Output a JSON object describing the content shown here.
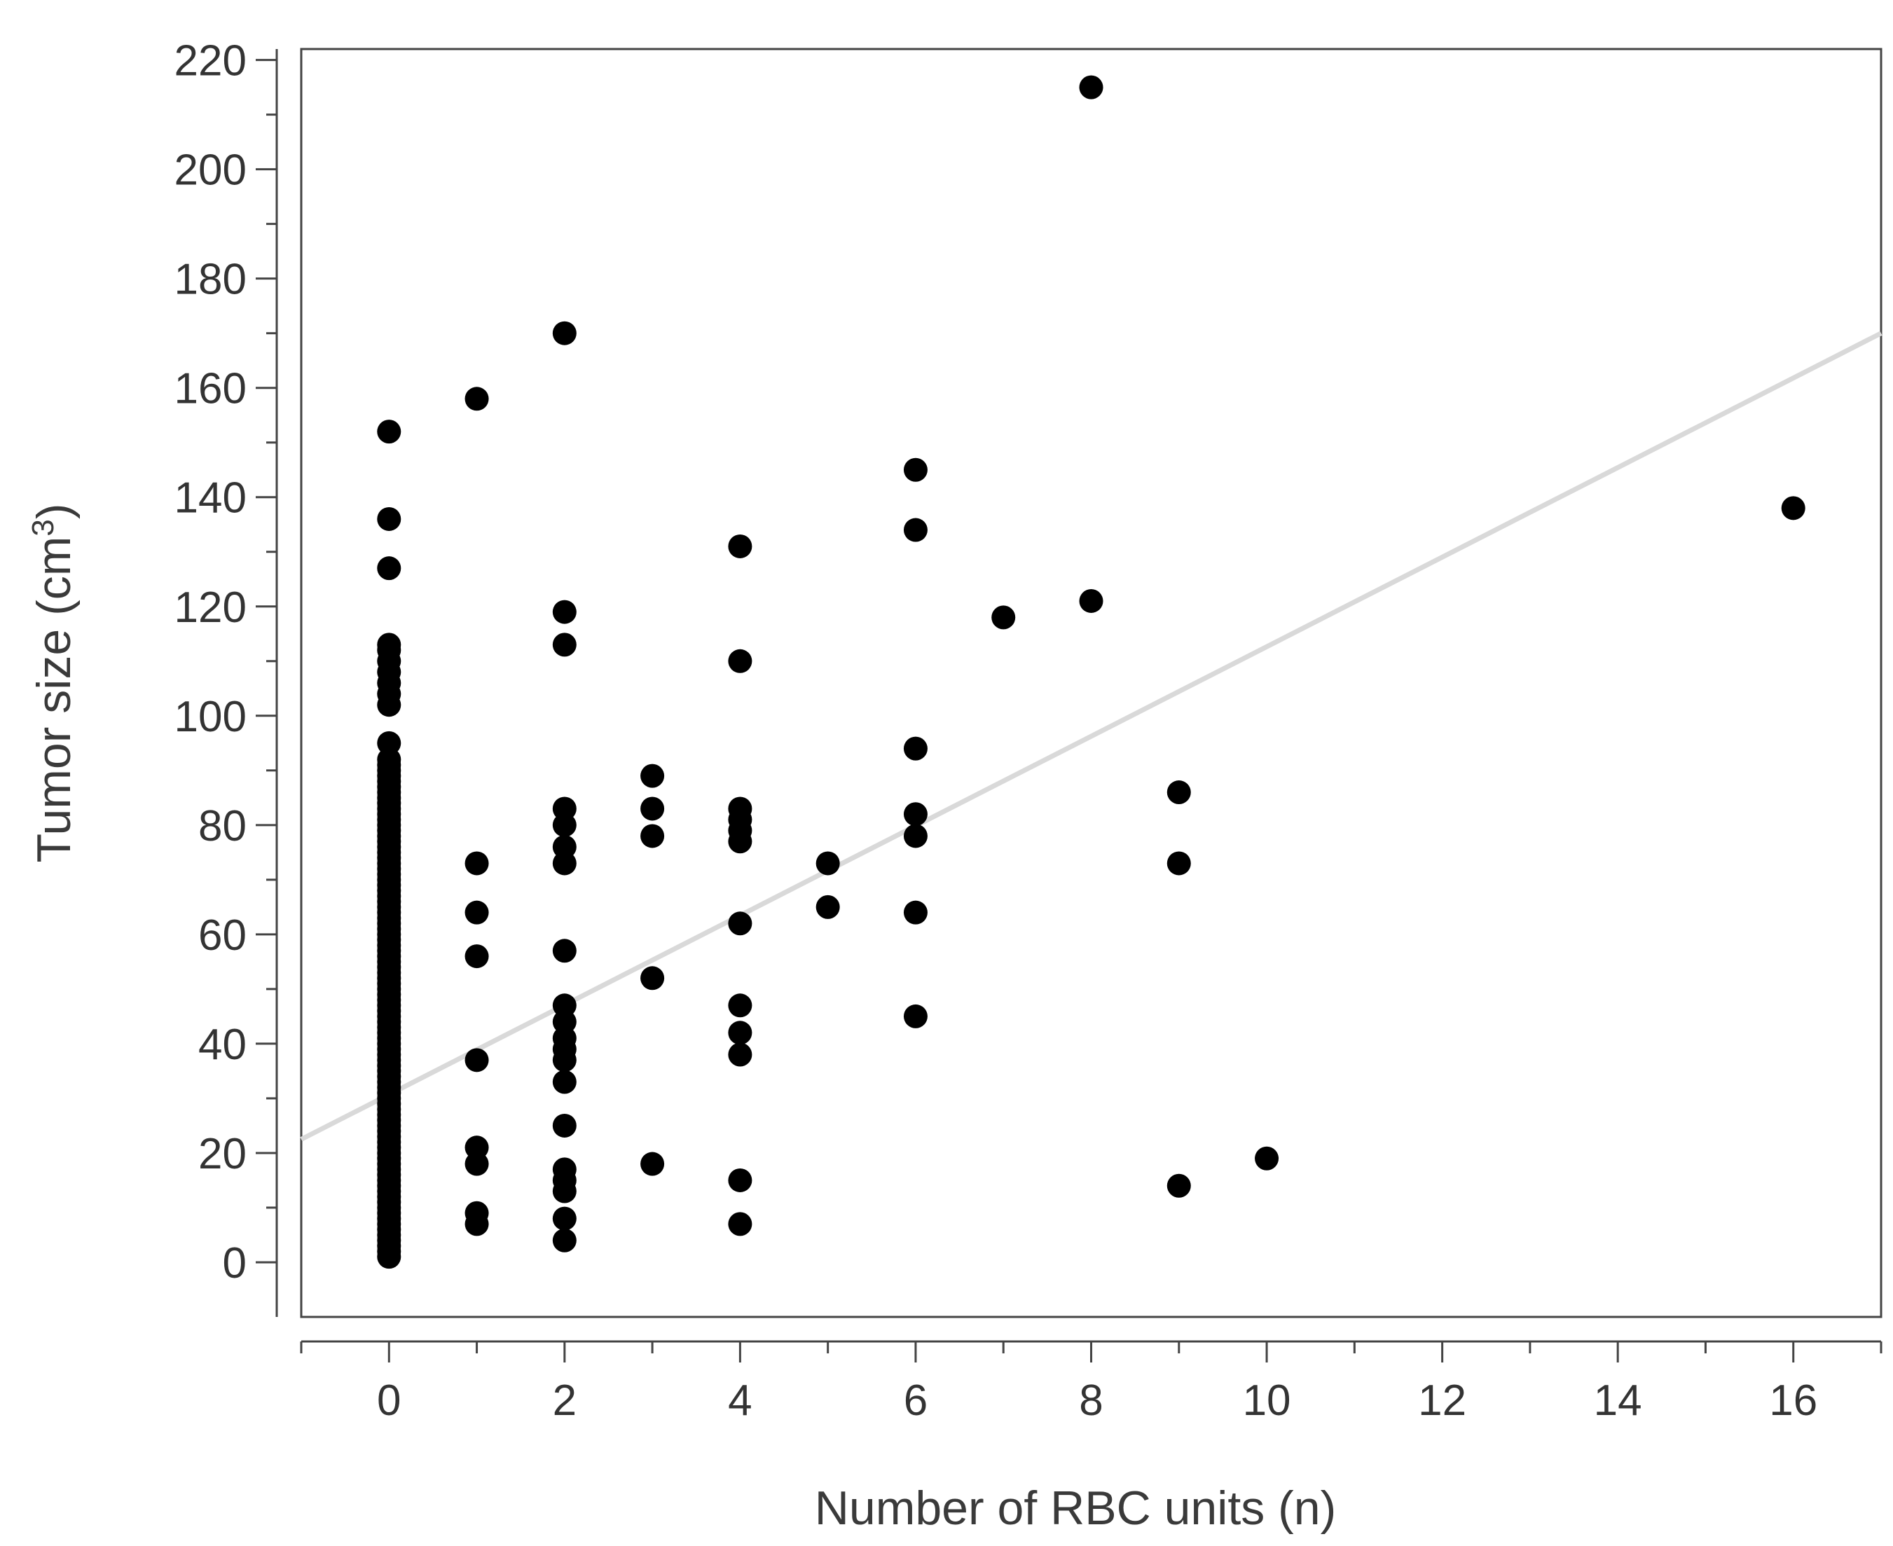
{
  "chart_data": {
    "type": "scatter",
    "title": "",
    "xlabel": "Number of RBC units (n)",
    "ylabel_prefix": "Tumor size (cm",
    "ylabel_sup": "3",
    "ylabel_suffix": ")",
    "xlim": [
      -1,
      17
    ],
    "ylim": [
      -10,
      222
    ],
    "x_ticks": [
      0,
      2,
      4,
      6,
      8,
      10,
      12,
      14,
      16
    ],
    "x_tick_labels": [
      "0",
      "2",
      "4",
      "6",
      "8",
      "10",
      "12",
      "14",
      "16"
    ],
    "y_ticks": [
      0,
      20,
      40,
      60,
      80,
      100,
      120,
      140,
      160,
      180,
      200,
      220
    ],
    "y_tick_labels": [
      "0",
      "20",
      "40",
      "60",
      "80",
      "100",
      "120",
      "140",
      "160",
      "180",
      "200",
      "220"
    ],
    "grid": false,
    "legend": "none",
    "colors": {
      "points": "#000000",
      "trend_line": "#d9d9d9",
      "axes": "#444444"
    },
    "points": [
      {
        "x": 0,
        "y": 1
      },
      {
        "x": 0,
        "y": 2
      },
      {
        "x": 0,
        "y": 3
      },
      {
        "x": 0,
        "y": 4
      },
      {
        "x": 0,
        "y": 5
      },
      {
        "x": 0,
        "y": 6
      },
      {
        "x": 0,
        "y": 7
      },
      {
        "x": 0,
        "y": 8
      },
      {
        "x": 0,
        "y": 9
      },
      {
        "x": 0,
        "y": 10
      },
      {
        "x": 0,
        "y": 11
      },
      {
        "x": 0,
        "y": 12
      },
      {
        "x": 0,
        "y": 13
      },
      {
        "x": 0,
        "y": 14
      },
      {
        "x": 0,
        "y": 15
      },
      {
        "x": 0,
        "y": 16
      },
      {
        "x": 0,
        "y": 17
      },
      {
        "x": 0,
        "y": 18
      },
      {
        "x": 0,
        "y": 19
      },
      {
        "x": 0,
        "y": 20
      },
      {
        "x": 0,
        "y": 21
      },
      {
        "x": 0,
        "y": 22
      },
      {
        "x": 0,
        "y": 23
      },
      {
        "x": 0,
        "y": 24
      },
      {
        "x": 0,
        "y": 25
      },
      {
        "x": 0,
        "y": 26
      },
      {
        "x": 0,
        "y": 27
      },
      {
        "x": 0,
        "y": 28
      },
      {
        "x": 0,
        "y": 29
      },
      {
        "x": 0,
        "y": 30
      },
      {
        "x": 0,
        "y": 31
      },
      {
        "x": 0,
        "y": 32
      },
      {
        "x": 0,
        "y": 33
      },
      {
        "x": 0,
        "y": 34
      },
      {
        "x": 0,
        "y": 35
      },
      {
        "x": 0,
        "y": 36
      },
      {
        "x": 0,
        "y": 37
      },
      {
        "x": 0,
        "y": 38
      },
      {
        "x": 0,
        "y": 39
      },
      {
        "x": 0,
        "y": 40
      },
      {
        "x": 0,
        "y": 41
      },
      {
        "x": 0,
        "y": 42
      },
      {
        "x": 0,
        "y": 43
      },
      {
        "x": 0,
        "y": 44
      },
      {
        "x": 0,
        "y": 45
      },
      {
        "x": 0,
        "y": 46
      },
      {
        "x": 0,
        "y": 47
      },
      {
        "x": 0,
        "y": 48
      },
      {
        "x": 0,
        "y": 49
      },
      {
        "x": 0,
        "y": 50
      },
      {
        "x": 0,
        "y": 51
      },
      {
        "x": 0,
        "y": 52
      },
      {
        "x": 0,
        "y": 53
      },
      {
        "x": 0,
        "y": 54
      },
      {
        "x": 0,
        "y": 55
      },
      {
        "x": 0,
        "y": 56
      },
      {
        "x": 0,
        "y": 57
      },
      {
        "x": 0,
        "y": 58
      },
      {
        "x": 0,
        "y": 59
      },
      {
        "x": 0,
        "y": 60
      },
      {
        "x": 0,
        "y": 61
      },
      {
        "x": 0,
        "y": 62
      },
      {
        "x": 0,
        "y": 63
      },
      {
        "x": 0,
        "y": 64
      },
      {
        "x": 0,
        "y": 65
      },
      {
        "x": 0,
        "y": 66
      },
      {
        "x": 0,
        "y": 67
      },
      {
        "x": 0,
        "y": 68
      },
      {
        "x": 0,
        "y": 69
      },
      {
        "x": 0,
        "y": 70
      },
      {
        "x": 0,
        "y": 71
      },
      {
        "x": 0,
        "y": 72
      },
      {
        "x": 0,
        "y": 73
      },
      {
        "x": 0,
        "y": 74
      },
      {
        "x": 0,
        "y": 75
      },
      {
        "x": 0,
        "y": 76
      },
      {
        "x": 0,
        "y": 77
      },
      {
        "x": 0,
        "y": 78
      },
      {
        "x": 0,
        "y": 79
      },
      {
        "x": 0,
        "y": 80
      },
      {
        "x": 0,
        "y": 81
      },
      {
        "x": 0,
        "y": 82
      },
      {
        "x": 0,
        "y": 83
      },
      {
        "x": 0,
        "y": 84
      },
      {
        "x": 0,
        "y": 85
      },
      {
        "x": 0,
        "y": 86
      },
      {
        "x": 0,
        "y": 87
      },
      {
        "x": 0,
        "y": 88
      },
      {
        "x": 0,
        "y": 89
      },
      {
        "x": 0,
        "y": 90
      },
      {
        "x": 0,
        "y": 91
      },
      {
        "x": 0,
        "y": 92
      },
      {
        "x": 0,
        "y": 95
      },
      {
        "x": 0,
        "y": 102
      },
      {
        "x": 0,
        "y": 104
      },
      {
        "x": 0,
        "y": 106
      },
      {
        "x": 0,
        "y": 108
      },
      {
        "x": 0,
        "y": 110
      },
      {
        "x": 0,
        "y": 112
      },
      {
        "x": 0,
        "y": 113
      },
      {
        "x": 0,
        "y": 127
      },
      {
        "x": 0,
        "y": 136
      },
      {
        "x": 0,
        "y": 152
      },
      {
        "x": 1,
        "y": 7
      },
      {
        "x": 1,
        "y": 9
      },
      {
        "x": 1,
        "y": 18
      },
      {
        "x": 1,
        "y": 21
      },
      {
        "x": 1,
        "y": 37
      },
      {
        "x": 1,
        "y": 56
      },
      {
        "x": 1,
        "y": 64
      },
      {
        "x": 1,
        "y": 73
      },
      {
        "x": 1,
        "y": 158
      },
      {
        "x": 2,
        "y": 4
      },
      {
        "x": 2,
        "y": 8
      },
      {
        "x": 2,
        "y": 13
      },
      {
        "x": 2,
        "y": 15
      },
      {
        "x": 2,
        "y": 17
      },
      {
        "x": 2,
        "y": 25
      },
      {
        "x": 2,
        "y": 33
      },
      {
        "x": 2,
        "y": 37
      },
      {
        "x": 2,
        "y": 39
      },
      {
        "x": 2,
        "y": 41
      },
      {
        "x": 2,
        "y": 44
      },
      {
        "x": 2,
        "y": 47
      },
      {
        "x": 2,
        "y": 57
      },
      {
        "x": 2,
        "y": 73
      },
      {
        "x": 2,
        "y": 76
      },
      {
        "x": 2,
        "y": 80
      },
      {
        "x": 2,
        "y": 83
      },
      {
        "x": 2,
        "y": 113
      },
      {
        "x": 2,
        "y": 119
      },
      {
        "x": 2,
        "y": 170
      },
      {
        "x": 3,
        "y": 18
      },
      {
        "x": 3,
        "y": 52
      },
      {
        "x": 3,
        "y": 78
      },
      {
        "x": 3,
        "y": 83
      },
      {
        "x": 3,
        "y": 89
      },
      {
        "x": 4,
        "y": 7
      },
      {
        "x": 4,
        "y": 15
      },
      {
        "x": 4,
        "y": 38
      },
      {
        "x": 4,
        "y": 42
      },
      {
        "x": 4,
        "y": 47
      },
      {
        "x": 4,
        "y": 62
      },
      {
        "x": 4,
        "y": 77
      },
      {
        "x": 4,
        "y": 79
      },
      {
        "x": 4,
        "y": 81
      },
      {
        "x": 4,
        "y": 83
      },
      {
        "x": 4,
        "y": 110
      },
      {
        "x": 4,
        "y": 131
      },
      {
        "x": 5,
        "y": 65
      },
      {
        "x": 5,
        "y": 73
      },
      {
        "x": 6,
        "y": 45
      },
      {
        "x": 6,
        "y": 64
      },
      {
        "x": 6,
        "y": 78
      },
      {
        "x": 6,
        "y": 82
      },
      {
        "x": 6,
        "y": 94
      },
      {
        "x": 6,
        "y": 134
      },
      {
        "x": 6,
        "y": 145
      },
      {
        "x": 7,
        "y": 118
      },
      {
        "x": 8,
        "y": 121
      },
      {
        "x": 8,
        "y": 215
      },
      {
        "x": 9,
        "y": 14
      },
      {
        "x": 9,
        "y": 73
      },
      {
        "x": 9,
        "y": 86
      },
      {
        "x": 10,
        "y": 19
      },
      {
        "x": 16,
        "y": 138
      }
    ],
    "trend_line": {
      "x": [
        -1,
        17
      ],
      "y": [
        22.5,
        170
      ]
    }
  }
}
